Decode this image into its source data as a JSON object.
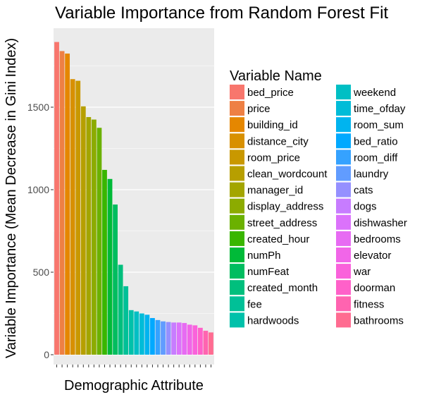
{
  "chart_data": {
    "type": "bar",
    "title": "Variable Importance from Random Forest Fit",
    "xlabel": "Demographic Attribute",
    "ylabel": "Variable Importance (Mean Decrease in Gini Index)",
    "ylim": [
      0,
      2000
    ],
    "yticks": [
      0,
      500,
      1000,
      1500
    ],
    "grid": true,
    "legend_position": "right",
    "legend_title": "Variable Name",
    "categories": [
      "bed_price",
      "price",
      "building_id",
      "distance_city",
      "room_price",
      "clean_wordcount",
      "manager_id",
      "display_address",
      "street_address",
      "created_hour",
      "numPh",
      "numFeat",
      "created_month",
      "fee",
      "hardwoods",
      "weekend",
      "time_ofday",
      "room_sum",
      "bed_ratio",
      "room_diff",
      "laundry",
      "cats",
      "dogs",
      "dishwasher",
      "bedrooms",
      "elevator",
      "war",
      "doorman",
      "fitness",
      "bathrooms"
    ],
    "values": [
      1895,
      1840,
      1825,
      1670,
      1660,
      1505,
      1440,
      1425,
      1375,
      1120,
      1065,
      910,
      545,
      415,
      270,
      262,
      250,
      242,
      222,
      210,
      202,
      198,
      195,
      195,
      192,
      182,
      178,
      163,
      145,
      135
    ],
    "colors": [
      "#F8766D",
      "#EE8044",
      "#E58700",
      "#D89000",
      "#C99800",
      "#B79F00",
      "#A3A500",
      "#8CAB00",
      "#6BB100",
      "#39B600",
      "#00BA38",
      "#00BD5F",
      "#00BF7D",
      "#00C097",
      "#00C1AA",
      "#00BFC4",
      "#00BCD8",
      "#00B4EF",
      "#00A9FF",
      "#35A2FF",
      "#619CFF",
      "#9590FF",
      "#C77CFF",
      "#DB72FB",
      "#E76BF3",
      "#F166E8",
      "#FA62DB",
      "#FF61C9",
      "#FF64B0",
      "#FF6C91"
    ]
  }
}
